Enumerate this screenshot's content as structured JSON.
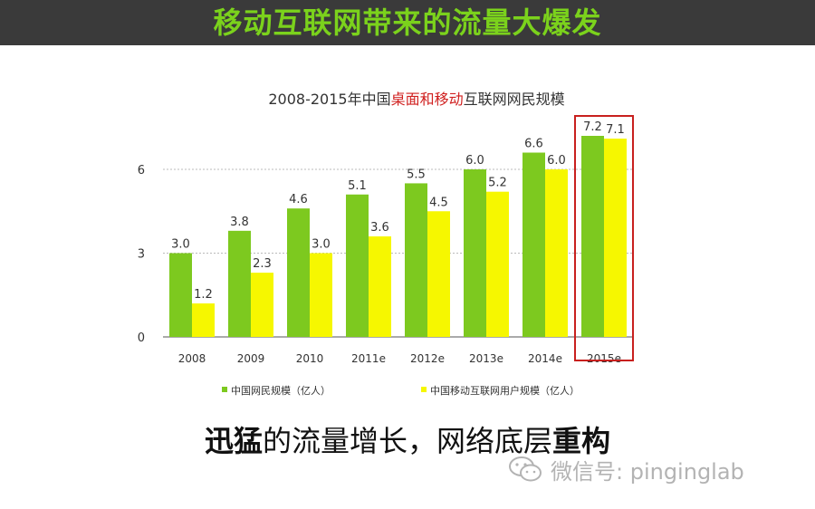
{
  "header": {
    "title": "移动互联网带来的流量大爆发"
  },
  "chart_data": {
    "type": "bar",
    "title_parts": [
      "2008-2015年中国",
      "桌面和移动",
      "互联网网民规模"
    ],
    "categories": [
      "2008",
      "2009",
      "2010",
      "2011e",
      "2012e",
      "2013e",
      "2014e",
      "2015e"
    ],
    "series": [
      {
        "name": "中国网民规模（亿人）",
        "values": [
          3.0,
          3.8,
          4.6,
          5.1,
          5.5,
          6.0,
          6.6,
          7.2
        ],
        "color": "#7dc91f"
      },
      {
        "name": "中国移动互联网用户规模（亿人）",
        "values": [
          1.2,
          2.3,
          3.0,
          3.6,
          4.5,
          5.2,
          6.0,
          7.1
        ],
        "color": "#f6f700"
      }
    ],
    "data_labels": [
      [
        "3.0",
        "3.8",
        "4.6",
        "5.1",
        "5.5",
        "6.0",
        "6.6",
        "7.2"
      ],
      [
        "1.2",
        "2.3",
        "3.0",
        "3.6",
        "4.5",
        "5.2",
        "6.0",
        "7.1"
      ]
    ],
    "yticks": [
      "0",
      "3",
      "6"
    ],
    "ytick_values": [
      0,
      3,
      6
    ],
    "ylim": [
      0,
      7.2
    ],
    "grid": true,
    "legend_position": "bottom",
    "highlight_category": "2015e",
    "title_highlight_color": "#d0201f",
    "highlight_box_color": "#c8201e"
  },
  "caption": {
    "bold1": "迅猛",
    "normal": "的流量增长，网络底层",
    "bold2": "重构"
  },
  "watermark": {
    "text": "微信号: pinginglab"
  }
}
